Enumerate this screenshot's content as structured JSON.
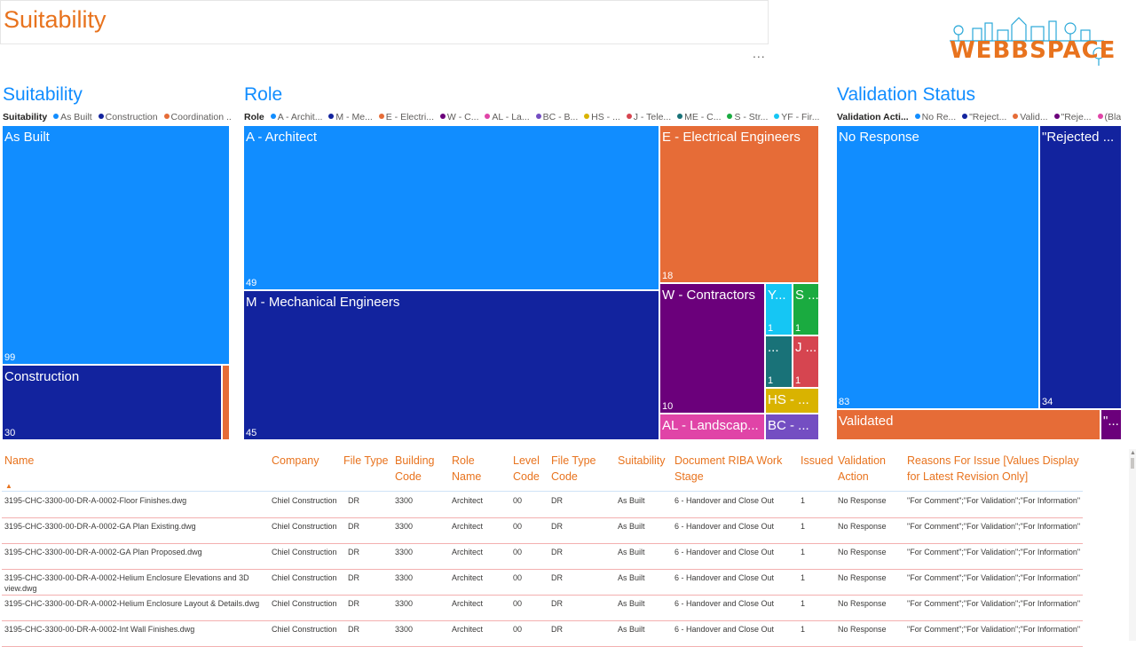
{
  "page_title": "Suitability",
  "more_options": "...",
  "logo_text": "WEBBSPACE",
  "colors": {
    "accent": "#e8731e",
    "blue": "#118dff",
    "navy": "#12239e"
  },
  "suitability": {
    "title": "Suitability",
    "legend_title": "Suitability",
    "legend": [
      {
        "label": "As Built",
        "color": "#118dff"
      },
      {
        "label": "Construction",
        "color": "#12239e"
      },
      {
        "label": "Coordination ...",
        "color": "#e66c37"
      }
    ],
    "tiles": [
      {
        "label": "As Built",
        "value": "99"
      },
      {
        "label": "Construction",
        "value": "30"
      },
      {
        "label": "",
        "value": ""
      }
    ]
  },
  "role": {
    "title": "Role",
    "legend_title": "Role",
    "legend": [
      {
        "label": "A - Archit...",
        "color": "#118dff"
      },
      {
        "label": "M - Me...",
        "color": "#12239e"
      },
      {
        "label": "E - Electri...",
        "color": "#e66c37"
      },
      {
        "label": "W - C...",
        "color": "#6b007b"
      },
      {
        "label": "AL - La...",
        "color": "#e044a7"
      },
      {
        "label": "BC - B...",
        "color": "#744ec2"
      },
      {
        "label": "HS - ...",
        "color": "#d9b300"
      },
      {
        "label": "J - Tele...",
        "color": "#d64550"
      },
      {
        "label": "ME - C...",
        "color": "#197278"
      },
      {
        "label": "S - Str...",
        "color": "#1aab40"
      },
      {
        "label": "YF - Fir...",
        "color": "#15c6f4"
      }
    ],
    "tiles": [
      {
        "label": "A - Architect",
        "value": "49"
      },
      {
        "label": "M - Mechanical Engineers",
        "value": "45"
      },
      {
        "label": "E - Electrical Engineers",
        "value": "18"
      },
      {
        "label": "W - Contractors",
        "value": "10"
      },
      {
        "label": "Y...",
        "value": "1"
      },
      {
        "label": "S ...",
        "value": "1"
      },
      {
        "label": "...",
        "value": "1"
      },
      {
        "label": "J ...",
        "value": "1"
      },
      {
        "label": "HS - ...",
        "value": ""
      },
      {
        "label": "AL - Landscap...",
        "value": ""
      },
      {
        "label": "BC - ...",
        "value": ""
      }
    ]
  },
  "validation": {
    "title": "Validation Status",
    "legend_title": "Validation Acti...",
    "legend": [
      {
        "label": "No Re...",
        "color": "#118dff"
      },
      {
        "label": "\"Reject...",
        "color": "#12239e"
      },
      {
        "label": "Valid...",
        "color": "#e66c37"
      },
      {
        "label": "\"Reje...",
        "color": "#6b007b"
      },
      {
        "label": "(Bla...",
        "color": "#e044a7"
      }
    ],
    "tiles": [
      {
        "label": "No Response",
        "value": "83"
      },
      {
        "label": "\"Rejected ...",
        "value": "34"
      },
      {
        "label": "Validated",
        "value": ""
      },
      {
        "label": "\"...",
        "value": ""
      }
    ]
  },
  "table": {
    "headers": [
      "Name",
      "Company",
      "File Type",
      "Building Code",
      "Role Name",
      "Level Code",
      "File Type Code",
      "Suitability",
      "Document RIBA Work Stage",
      "Issued",
      "Validation Action",
      "Reasons For Issue [Values Display for Latest Revision Only]"
    ],
    "sort_indicator": "▲",
    "rows": [
      [
        "3195-CHC-3300-00-DR-A-0002-Floor Finishes.dwg",
        "Chiel Construction",
        "DR",
        "3300",
        "Architect",
        "00",
        "DR",
        "As Built",
        "6 - Handover and Close Out",
        "1",
        "No Response",
        "\"For Comment\";\"For Validation\";\"For Information\""
      ],
      [
        "3195-CHC-3300-00-DR-A-0002-GA Plan Existing.dwg",
        "Chiel Construction",
        "DR",
        "3300",
        "Architect",
        "00",
        "DR",
        "As Built",
        "6 - Handover and Close Out",
        "1",
        "No Response",
        "\"For Comment\";\"For Validation\";\"For Information\""
      ],
      [
        "3195-CHC-3300-00-DR-A-0002-GA Plan Proposed.dwg",
        "Chiel Construction",
        "DR",
        "3300",
        "Architect",
        "00",
        "DR",
        "As Built",
        "6 - Handover and Close Out",
        "1",
        "No Response",
        "\"For Comment\";\"For Validation\";\"For Information\""
      ],
      [
        "3195-CHC-3300-00-DR-A-0002-Helium Enclosure Elevations and 3D view.dwg",
        "Chiel Construction",
        "DR",
        "3300",
        "Architect",
        "00",
        "DR",
        "As Built",
        "6 - Handover and Close Out",
        "1",
        "No Response",
        "\"For Comment\";\"For Validation\";\"For Information\""
      ],
      [
        "3195-CHC-3300-00-DR-A-0002-Helium Enclosure Layout & Details.dwg",
        "Chiel Construction",
        "DR",
        "3300",
        "Architect",
        "00",
        "DR",
        "As Built",
        "6 - Handover and Close Out",
        "1",
        "No Response",
        "\"For Comment\";\"For Validation\";\"For Information\""
      ],
      [
        "3195-CHC-3300-00-DR-A-0002-Int Wall Finishes.dwg",
        "Chiel Construction",
        "DR",
        "3300",
        "Architect",
        "00",
        "DR",
        "As Built",
        "6 - Handover and Close Out",
        "1",
        "No Response",
        "\"For Comment\";\"For Validation\";\"For Information\""
      ]
    ]
  }
}
